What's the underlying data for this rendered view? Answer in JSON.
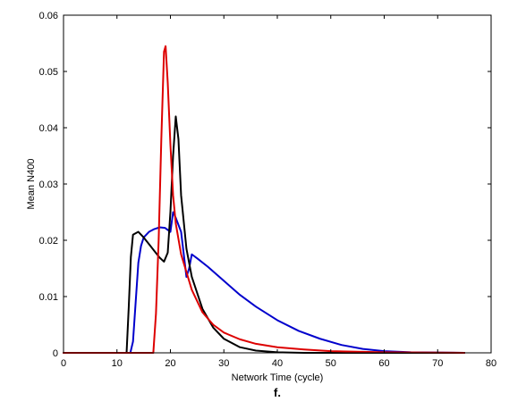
{
  "chart_data": {
    "type": "line",
    "title": "",
    "caption": "f.",
    "xlabel": "Network Time (cycle)",
    "ylabel": "Mean N400",
    "xlim": [
      0,
      80
    ],
    "ylim": [
      0,
      0.06
    ],
    "xticks": [
      "0",
      "10",
      "20",
      "30",
      "40",
      "50",
      "60",
      "70",
      "80"
    ],
    "yticks": [
      "0",
      "0.01",
      "0.02",
      "0.03",
      "0.04",
      "0.05",
      "0.06"
    ],
    "grid": false,
    "series": [
      {
        "color": "#0000cc",
        "points": [
          [
            0,
            0
          ],
          [
            12.5,
            0
          ],
          [
            13,
            0.002
          ],
          [
            13.5,
            0.009
          ],
          [
            14,
            0.016
          ],
          [
            14.5,
            0.019
          ],
          [
            15,
            0.0205
          ],
          [
            16,
            0.0215
          ],
          [
            17,
            0.022
          ],
          [
            18,
            0.0223
          ],
          [
            19,
            0.0222
          ],
          [
            20,
            0.0215
          ],
          [
            20.5,
            0.025
          ],
          [
            21,
            0.024
          ],
          [
            22,
            0.0215
          ],
          [
            23,
            0.0135
          ],
          [
            23.5,
            0.015
          ],
          [
            24,
            0.0175
          ],
          [
            25,
            0.0168
          ],
          [
            27,
            0.0153
          ],
          [
            30,
            0.0128
          ],
          [
            33,
            0.0103
          ],
          [
            36,
            0.0082
          ],
          [
            40,
            0.0058
          ],
          [
            44,
            0.0039
          ],
          [
            48,
            0.0025
          ],
          [
            52,
            0.0014
          ],
          [
            56,
            0.0007
          ],
          [
            60,
            0.0003
          ],
          [
            65,
            0.0001
          ],
          [
            75,
            0
          ]
        ]
      },
      {
        "color": "#000000",
        "points": [
          [
            0,
            0
          ],
          [
            11.8,
            0
          ],
          [
            12.2,
            0.008
          ],
          [
            12.6,
            0.017
          ],
          [
            13,
            0.021
          ],
          [
            14,
            0.0215
          ],
          [
            15,
            0.0205
          ],
          [
            16,
            0.0193
          ],
          [
            17,
            0.0181
          ],
          [
            18,
            0.0169
          ],
          [
            18.8,
            0.0162
          ],
          [
            19.5,
            0.0178
          ],
          [
            20,
            0.025
          ],
          [
            20.5,
            0.035
          ],
          [
            21,
            0.042
          ],
          [
            21.5,
            0.038
          ],
          [
            22,
            0.028
          ],
          [
            23,
            0.0185
          ],
          [
            24,
            0.0135
          ],
          [
            26,
            0.0078
          ],
          [
            28,
            0.0045
          ],
          [
            30,
            0.0025
          ],
          [
            33,
            0.001
          ],
          [
            36,
            0.0004
          ],
          [
            40,
            0.0001
          ],
          [
            45,
            0
          ],
          [
            75,
            0
          ]
        ]
      },
      {
        "color": "#dd0000",
        "points": [
          [
            0,
            0
          ],
          [
            16.8,
            0
          ],
          [
            17.3,
            0.007
          ],
          [
            17.8,
            0.02
          ],
          [
            18.3,
            0.038
          ],
          [
            18.8,
            0.0535
          ],
          [
            19.1,
            0.0545
          ],
          [
            19.5,
            0.048
          ],
          [
            20,
            0.037
          ],
          [
            20.5,
            0.028
          ],
          [
            21,
            0.023
          ],
          [
            22,
            0.0175
          ],
          [
            24,
            0.0112
          ],
          [
            26,
            0.0072
          ],
          [
            28,
            0.005
          ],
          [
            30,
            0.0036
          ],
          [
            33,
            0.0024
          ],
          [
            36,
            0.0016
          ],
          [
            40,
            0.001
          ],
          [
            45,
            0.0006
          ],
          [
            50,
            0.0003
          ],
          [
            60,
            0.0001
          ],
          [
            75,
            0
          ]
        ]
      }
    ]
  }
}
